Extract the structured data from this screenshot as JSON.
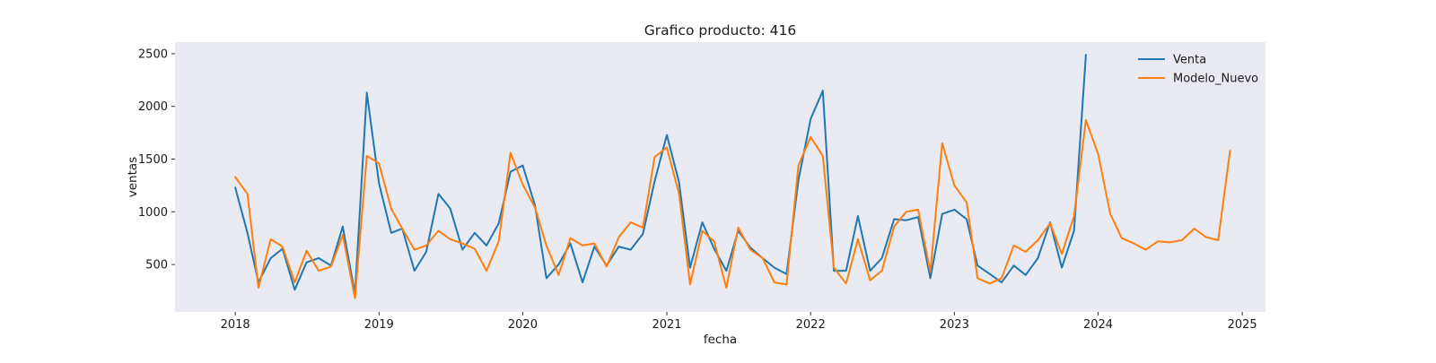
{
  "chart_data": {
    "type": "line",
    "title": "Grafico producto: 416",
    "xlabel": "fecha",
    "ylabel": "ventas",
    "xlim": [
      "2017-08-01",
      "2025-03-01"
    ],
    "ylim": [
      50,
      2610
    ],
    "x_ticks": [
      "2018",
      "2019",
      "2020",
      "2021",
      "2022",
      "2023",
      "2024",
      "2025"
    ],
    "y_ticks": [
      500,
      1000,
      1500,
      2000,
      2500
    ],
    "grid": false,
    "background": "#eaeaf2",
    "legend_position": "upper right",
    "series": [
      {
        "name": "Venta",
        "color": "#1f77b4",
        "x": [
          "2018-01-01",
          "2018-02-01",
          "2018-03-01",
          "2018-04-01",
          "2018-05-01",
          "2018-06-01",
          "2018-07-01",
          "2018-08-01",
          "2018-09-01",
          "2018-10-01",
          "2018-11-01",
          "2018-12-01",
          "2019-01-01",
          "2019-02-01",
          "2019-03-01",
          "2019-04-01",
          "2019-05-01",
          "2019-06-01",
          "2019-07-01",
          "2019-08-01",
          "2019-09-01",
          "2019-10-01",
          "2019-11-01",
          "2019-12-01",
          "2020-01-01",
          "2020-02-01",
          "2020-03-01",
          "2020-04-01",
          "2020-05-01",
          "2020-06-01",
          "2020-07-01",
          "2020-08-01",
          "2020-09-01",
          "2020-10-01",
          "2020-11-01",
          "2020-12-01",
          "2021-01-01",
          "2021-02-01",
          "2021-03-01",
          "2021-04-01",
          "2021-05-01",
          "2021-06-01",
          "2021-07-01",
          "2021-08-01",
          "2021-09-01",
          "2021-10-01",
          "2021-11-01",
          "2021-12-01",
          "2022-01-01",
          "2022-02-01",
          "2022-03-01",
          "2022-04-01",
          "2022-05-01",
          "2022-06-01",
          "2022-07-01",
          "2022-08-01",
          "2022-09-01",
          "2022-10-01",
          "2022-11-01",
          "2022-12-01",
          "2023-01-01",
          "2023-02-01",
          "2023-03-01",
          "2023-04-01",
          "2023-05-01",
          "2023-06-01",
          "2023-07-01",
          "2023-08-01",
          "2023-09-01",
          "2023-10-01",
          "2023-11-01",
          "2023-12-01"
        ],
        "y": [
          1230,
          800,
          330,
          560,
          650,
          260,
          520,
          560,
          490,
          860,
          220,
          2130,
          1270,
          800,
          840,
          440,
          620,
          1170,
          1030,
          640,
          800,
          680,
          890,
          1380,
          1440,
          1060,
          370,
          500,
          700,
          330,
          670,
          490,
          670,
          640,
          790,
          1290,
          1730,
          1280,
          470,
          900,
          650,
          440,
          820,
          660,
          560,
          470,
          410,
          1300,
          1880,
          2150,
          440,
          440,
          960,
          440,
          560,
          930,
          920,
          950,
          370,
          980,
          1020,
          930,
          490,
          410,
          330,
          490,
          400,
          560,
          900,
          470,
          820,
          2490
        ]
      },
      {
        "name": "Modelo_Nuevo",
        "color": "#ff7f0e",
        "x": [
          "2018-01-01",
          "2018-02-01",
          "2018-03-01",
          "2018-04-01",
          "2018-05-01",
          "2018-06-01",
          "2018-07-01",
          "2018-08-01",
          "2018-09-01",
          "2018-10-01",
          "2018-11-01",
          "2018-12-01",
          "2019-01-01",
          "2019-02-01",
          "2019-03-01",
          "2019-04-01",
          "2019-05-01",
          "2019-06-01",
          "2019-07-01",
          "2019-08-01",
          "2019-09-01",
          "2019-10-01",
          "2019-11-01",
          "2019-12-01",
          "2020-01-01",
          "2020-02-01",
          "2020-03-01",
          "2020-04-01",
          "2020-05-01",
          "2020-06-01",
          "2020-07-01",
          "2020-08-01",
          "2020-09-01",
          "2020-10-01",
          "2020-11-01",
          "2020-12-01",
          "2021-01-01",
          "2021-02-01",
          "2021-03-01",
          "2021-04-01",
          "2021-05-01",
          "2021-06-01",
          "2021-07-01",
          "2021-08-01",
          "2021-09-01",
          "2021-10-01",
          "2021-11-01",
          "2021-12-01",
          "2022-01-01",
          "2022-02-01",
          "2022-03-01",
          "2022-04-01",
          "2022-05-01",
          "2022-06-01",
          "2022-07-01",
          "2022-08-01",
          "2022-09-01",
          "2022-10-01",
          "2022-11-01",
          "2022-12-01",
          "2023-01-01",
          "2023-02-01",
          "2023-03-01",
          "2023-04-01",
          "2023-05-01",
          "2023-06-01",
          "2023-07-01",
          "2023-08-01",
          "2023-09-01",
          "2023-10-01",
          "2023-11-01",
          "2023-12-01",
          "2024-01-01",
          "2024-02-01",
          "2024-03-01",
          "2024-04-01",
          "2024-05-01",
          "2024-06-01",
          "2024-07-01",
          "2024-08-01",
          "2024-09-01",
          "2024-10-01",
          "2024-11-01",
          "2024-12-01"
        ],
        "y": [
          1330,
          1170,
          280,
          740,
          670,
          330,
          630,
          440,
          480,
          780,
          180,
          1530,
          1460,
          1030,
          840,
          640,
          680,
          820,
          740,
          700,
          650,
          440,
          720,
          1560,
          1260,
          1040,
          680,
          400,
          750,
          680,
          700,
          480,
          760,
          900,
          850,
          1520,
          1610,
          1170,
          310,
          820,
          720,
          280,
          850,
          640,
          560,
          330,
          310,
          1440,
          1710,
          1530,
          470,
          320,
          740,
          350,
          440,
          860,
          1000,
          1020,
          430,
          1650,
          1250,
          1090,
          370,
          320,
          370,
          680,
          620,
          730,
          890,
          600,
          960,
          1870,
          1550,
          980,
          750,
          700,
          640,
          720,
          710,
          730,
          840,
          760,
          730,
          1580
        ]
      }
    ]
  }
}
